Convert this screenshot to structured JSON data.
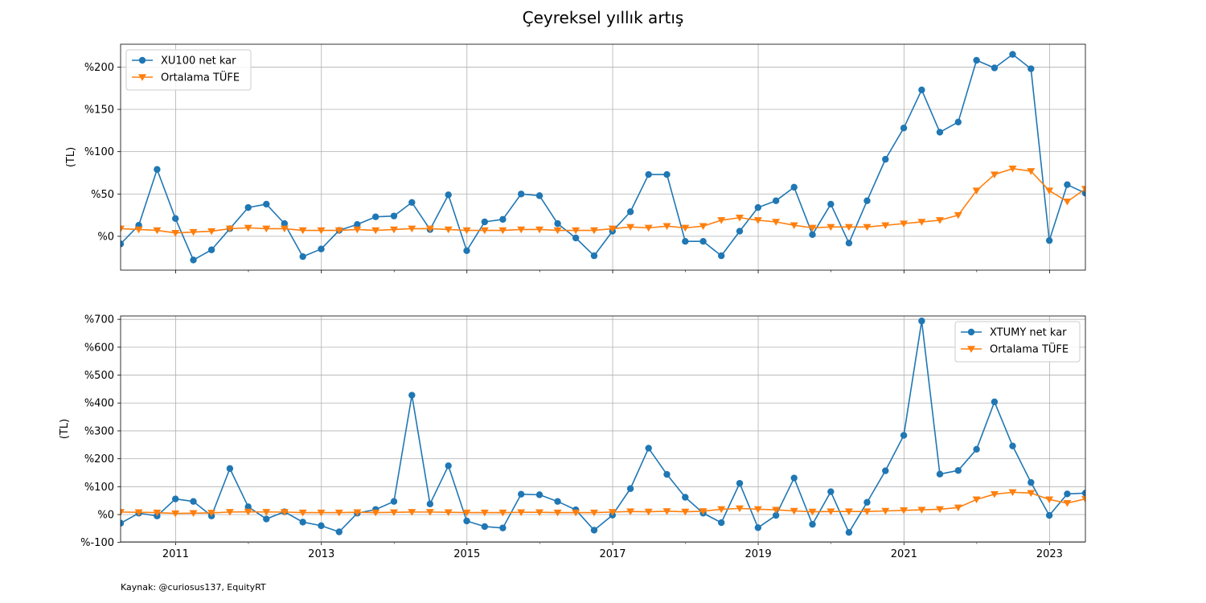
{
  "figure": {
    "title": "Çeyreksel yıllık artış",
    "source": "Kaynak: @curiosus137, EquityRT"
  },
  "colors": {
    "blue": "#1f77b4",
    "orange": "#ff7f0e",
    "grid": "#b0b0b0"
  },
  "chart_data": [
    {
      "type": "line",
      "ylabel": "(TL)",
      "ylim": [
        -40,
        227
      ],
      "xlim": [
        "2010-03-31",
        "2023-06-30"
      ],
      "yticks": [
        0,
        50,
        100,
        150,
        200
      ],
      "ytick_labels": [
        "%0",
        "%50",
        "%100",
        "%150",
        "%200"
      ],
      "xticks": [
        "2011",
        "2013",
        "2015",
        "2017",
        "2019",
        "2021",
        "2023"
      ],
      "show_xtick_labels": false,
      "grid": true,
      "legend": "top-left",
      "x": [
        "2010-03-31",
        "2010-06-30",
        "2010-09-30",
        "2010-12-31",
        "2011-03-31",
        "2011-06-30",
        "2011-09-30",
        "2011-12-31",
        "2012-03-31",
        "2012-06-30",
        "2012-09-30",
        "2012-12-31",
        "2013-03-31",
        "2013-06-30",
        "2013-09-30",
        "2013-12-31",
        "2014-03-31",
        "2014-06-30",
        "2014-09-30",
        "2014-12-31",
        "2015-03-31",
        "2015-06-30",
        "2015-09-30",
        "2015-12-31",
        "2016-03-31",
        "2016-06-30",
        "2016-09-30",
        "2016-12-31",
        "2017-03-31",
        "2017-06-30",
        "2017-09-30",
        "2017-12-31",
        "2018-03-31",
        "2018-06-30",
        "2018-09-30",
        "2018-12-31",
        "2019-03-31",
        "2019-06-30",
        "2019-09-30",
        "2019-12-31",
        "2020-03-31",
        "2020-06-30",
        "2020-09-30",
        "2020-12-31",
        "2021-03-31",
        "2021-06-30",
        "2021-09-30",
        "2021-12-31",
        "2022-03-31",
        "2022-06-30",
        "2022-09-30",
        "2022-12-31",
        "2023-03-31",
        "2023-06-30"
      ],
      "series": [
        {
          "name": "XU100 net kar",
          "marker": "circle",
          "color": "#1f77b4",
          "values": [
            -9,
            13,
            79,
            21,
            -28,
            -16,
            9,
            34,
            38,
            15,
            -24,
            -15,
            7,
            14,
            23,
            24,
            40,
            8,
            49,
            -17,
            17,
            20,
            50,
            48,
            15,
            -2,
            -23,
            6,
            29,
            73,
            73,
            -6,
            -6,
            -23,
            6,
            34,
            42,
            58,
            2,
            38,
            -8,
            42,
            91,
            128,
            173,
            123,
            135,
            208,
            199,
            215,
            198,
            -5,
            61,
            51
          ]
        },
        {
          "name": "Ortalama TÜFE",
          "marker": "triangle-down",
          "color": "#ff7f0e",
          "values": [
            9,
            8,
            7,
            4,
            5,
            6,
            9,
            10,
            9,
            9,
            7,
            7,
            7,
            8,
            7,
            8,
            9,
            9,
            8,
            7,
            7,
            7,
            8,
            8,
            7,
            7,
            7,
            9,
            11,
            10,
            12,
            10,
            12,
            19,
            22,
            19,
            17,
            13,
            10,
            11,
            11,
            11,
            13,
            15,
            17,
            19,
            25,
            54,
            73,
            80,
            77,
            54,
            41,
            56
          ]
        }
      ]
    },
    {
      "type": "line",
      "ylabel": "(TL)",
      "ylim": [
        -98,
        712
      ],
      "xlim": [
        "2010-03-31",
        "2023-06-30"
      ],
      "yticks": [
        -100,
        0,
        100,
        200,
        300,
        400,
        500,
        600,
        700
      ],
      "ytick_labels": [
        "%-100",
        "%0",
        "%100",
        "%200",
        "%300",
        "%400",
        "%500",
        "%600",
        "%700"
      ],
      "xticks": [
        "2011",
        "2013",
        "2015",
        "2017",
        "2019",
        "2021",
        "2023"
      ],
      "show_xtick_labels": true,
      "grid": true,
      "legend": "top-right",
      "x": [
        "2010-03-31",
        "2010-06-30",
        "2010-09-30",
        "2010-12-31",
        "2011-03-31",
        "2011-06-30",
        "2011-09-30",
        "2011-12-31",
        "2012-03-31",
        "2012-06-30",
        "2012-09-30",
        "2012-12-31",
        "2013-03-31",
        "2013-06-30",
        "2013-09-30",
        "2013-12-31",
        "2014-03-31",
        "2014-06-30",
        "2014-09-30",
        "2014-12-31",
        "2015-03-31",
        "2015-06-30",
        "2015-09-30",
        "2015-12-31",
        "2016-03-31",
        "2016-06-30",
        "2016-09-30",
        "2016-12-31",
        "2017-03-31",
        "2017-06-30",
        "2017-09-30",
        "2017-12-31",
        "2018-03-31",
        "2018-06-30",
        "2018-09-30",
        "2018-12-31",
        "2019-03-31",
        "2019-06-30",
        "2019-09-30",
        "2019-12-31",
        "2020-03-31",
        "2020-06-30",
        "2020-09-30",
        "2020-12-31",
        "2021-03-31",
        "2021-06-30",
        "2021-09-30",
        "2021-12-31",
        "2022-03-31",
        "2022-06-30",
        "2022-09-30",
        "2022-12-31",
        "2023-03-31",
        "2023-06-30"
      ],
      "series": [
        {
          "name": "XTUMY net kar",
          "marker": "circle",
          "color": "#1f77b4",
          "values": [
            -31,
            5,
            -5,
            56,
            47,
            -5,
            165,
            28,
            -16,
            10,
            -27,
            -40,
            -62,
            5,
            18,
            47,
            428,
            38,
            175,
            -23,
            -43,
            -48,
            73,
            71,
            47,
            17,
            -56,
            -2,
            93,
            238,
            144,
            62,
            5,
            -29,
            112,
            -47,
            -3,
            131,
            -35,
            82,
            -64,
            44,
            157,
            284,
            694,
            145,
            158,
            234,
            404,
            246,
            115,
            -3,
            74,
            77
          ]
        },
        {
          "name": "Ortalama TÜFE",
          "marker": "triangle-down",
          "color": "#ff7f0e",
          "values": [
            9,
            8,
            7,
            4,
            5,
            6,
            9,
            10,
            9,
            9,
            7,
            7,
            7,
            8,
            7,
            8,
            9,
            9,
            8,
            7,
            7,
            7,
            8,
            8,
            7,
            7,
            7,
            9,
            11,
            10,
            12,
            10,
            12,
            19,
            22,
            19,
            17,
            13,
            10,
            11,
            11,
            11,
            13,
            15,
            17,
            19,
            25,
            54,
            73,
            80,
            77,
            54,
            41,
            56
          ]
        }
      ]
    }
  ]
}
